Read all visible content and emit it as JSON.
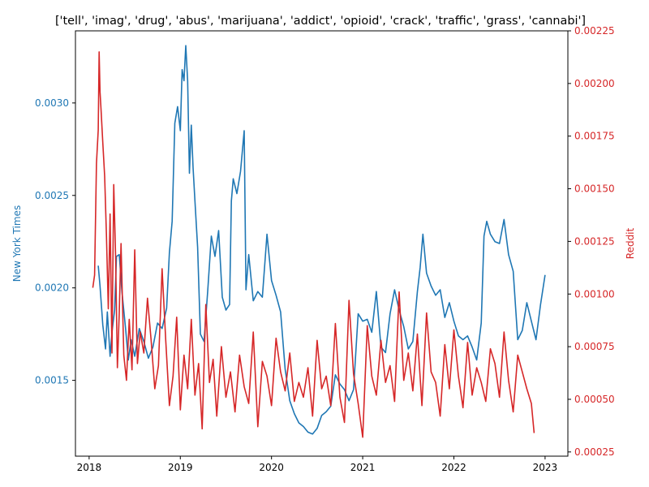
{
  "chart_data": {
    "type": "line",
    "title": "['tell', 'imag', 'drug', 'abus', 'marijuana', 'addict', 'opioid', 'crack', 'traffic', 'grass', 'cannabi']",
    "xlabel": "",
    "xlim": [
      2017.85,
      2023.25
    ],
    "x_ticks": [
      "2018",
      "2019",
      "2020",
      "2021",
      "2022",
      "2023"
    ],
    "left_axis": {
      "label": "New York Times",
      "color": "#1f77b4",
      "ylim": [
        0.00109,
        0.00339
      ],
      "ticks": [
        "0.0015",
        "0.0020",
        "0.0025",
        "0.0030"
      ]
    },
    "right_axis": {
      "label": "Reddit",
      "color": "#d62728",
      "ylim": [
        0.00023,
        0.00225
      ],
      "ticks": [
        "0.00025",
        "0.00050",
        "0.00075",
        "0.00100",
        "0.00125",
        "0.00150",
        "0.00175",
        "0.00200",
        "0.00225"
      ]
    },
    "grid": false,
    "series": [
      {
        "name": "New York Times",
        "axis": "left",
        "color": "#1f77b4",
        "x": [
          2018.1,
          2018.12,
          2018.15,
          2018.18,
          2018.2,
          2018.23,
          2018.25,
          2018.28,
          2018.3,
          2018.33,
          2018.36,
          2018.4,
          2018.43,
          2018.46,
          2018.5,
          2018.55,
          2018.6,
          2018.65,
          2018.7,
          2018.75,
          2018.8,
          2018.85,
          2018.88,
          2018.91,
          2018.94,
          2018.97,
          2019.0,
          2019.02,
          2019.04,
          2019.06,
          2019.08,
          2019.1,
          2019.12,
          2019.14,
          2019.16,
          2019.19,
          2019.22,
          2019.26,
          2019.3,
          2019.34,
          2019.38,
          2019.42,
          2019.46,
          2019.5,
          2019.54,
          2019.56,
          2019.58,
          2019.62,
          2019.66,
          2019.7,
          2019.72,
          2019.75,
          2019.8,
          2019.85,
          2019.9,
          2019.95,
          2020.0,
          2020.05,
          2020.1,
          2020.15,
          2020.2,
          2020.25,
          2020.3,
          2020.35,
          2020.4,
          2020.45,
          2020.5,
          2020.55,
          2020.6,
          2020.65,
          2020.7,
          2020.75,
          2020.8,
          2020.85,
          2020.9,
          2020.95,
          2021.0,
          2021.05,
          2021.1,
          2021.15,
          2021.2,
          2021.25,
          2021.3,
          2021.35,
          2021.4,
          2021.45,
          2021.5,
          2021.55,
          2021.6,
          2021.63,
          2021.66,
          2021.7,
          2021.75,
          2021.8,
          2021.85,
          2021.9,
          2021.95,
          2022.0,
          2022.05,
          2022.1,
          2022.15,
          2022.2,
          2022.25,
          2022.3,
          2022.33,
          2022.36,
          2022.4,
          2022.45,
          2022.5,
          2022.55,
          2022.6,
          2022.65,
          2022.7,
          2022.75,
          2022.8,
          2022.85,
          2022.9,
          2022.95,
          2023.0
        ],
        "y": [
          0.00212,
          0.00201,
          0.0018,
          0.00167,
          0.00187,
          0.00163,
          0.00176,
          0.00188,
          0.00217,
          0.00218,
          0.00198,
          0.00178,
          0.00161,
          0.00172,
          0.00163,
          0.00178,
          0.00171,
          0.00162,
          0.00168,
          0.00181,
          0.00178,
          0.00189,
          0.00219,
          0.00236,
          0.00289,
          0.00298,
          0.00285,
          0.00318,
          0.00312,
          0.00331,
          0.00312,
          0.00262,
          0.00288,
          0.00265,
          0.00247,
          0.00222,
          0.00175,
          0.00171,
          0.00198,
          0.00228,
          0.00217,
          0.00231,
          0.00195,
          0.00188,
          0.00191,
          0.00247,
          0.00259,
          0.00251,
          0.00263,
          0.00285,
          0.00199,
          0.00218,
          0.00193,
          0.00198,
          0.00195,
          0.00229,
          0.00204,
          0.00196,
          0.00187,
          0.00156,
          0.00139,
          0.00132,
          0.00127,
          0.00125,
          0.00122,
          0.00121,
          0.00124,
          0.00131,
          0.00133,
          0.00136,
          0.00153,
          0.00148,
          0.00145,
          0.00139,
          0.00145,
          0.00186,
          0.00182,
          0.00183,
          0.00176,
          0.00198,
          0.00168,
          0.00165,
          0.00186,
          0.00199,
          0.00188,
          0.00179,
          0.00167,
          0.00171,
          0.00198,
          0.00211,
          0.00229,
          0.00208,
          0.00201,
          0.00196,
          0.00199,
          0.00184,
          0.00192,
          0.00182,
          0.00174,
          0.00172,
          0.00174,
          0.00168,
          0.00161,
          0.00181,
          0.00228,
          0.00236,
          0.00229,
          0.00225,
          0.00224,
          0.00237,
          0.00218,
          0.00209,
          0.00172,
          0.00177,
          0.00192,
          0.00182,
          0.00172,
          0.00191,
          0.00207
        ]
      },
      {
        "name": "Reddit",
        "axis": "right",
        "color": "#d62728",
        "x": [
          2018.04,
          2018.06,
          2018.08,
          2018.1,
          2018.11,
          2018.12,
          2018.13,
          2018.15,
          2018.17,
          2018.19,
          2018.21,
          2018.23,
          2018.25,
          2018.27,
          2018.29,
          2018.31,
          2018.33,
          2018.35,
          2018.38,
          2018.41,
          2018.44,
          2018.47,
          2018.5,
          2018.53,
          2018.56,
          2018.6,
          2018.64,
          2018.68,
          2018.72,
          2018.76,
          2018.8,
          2018.84,
          2018.88,
          2018.92,
          2018.96,
          2019.0,
          2019.04,
          2019.08,
          2019.12,
          2019.16,
          2019.2,
          2019.24,
          2019.28,
          2019.32,
          2019.36,
          2019.4,
          2019.45,
          2019.5,
          2019.55,
          2019.6,
          2019.65,
          2019.7,
          2019.75,
          2019.8,
          2019.85,
          2019.9,
          2019.95,
          2020.0,
          2020.05,
          2020.1,
          2020.15,
          2020.2,
          2020.25,
          2020.3,
          2020.35,
          2020.4,
          2020.45,
          2020.5,
          2020.55,
          2020.6,
          2020.65,
          2020.7,
          2020.75,
          2020.8,
          2020.85,
          2020.9,
          2020.95,
          2021.0,
          2021.05,
          2021.1,
          2021.15,
          2021.2,
          2021.25,
          2021.3,
          2021.35,
          2021.4,
          2021.45,
          2021.5,
          2021.55,
          2021.6,
          2021.65,
          2021.7,
          2021.75,
          2021.8,
          2021.85,
          2021.9,
          2021.95,
          2022.0,
          2022.05,
          2022.1,
          2022.15,
          2022.2,
          2022.25,
          2022.3,
          2022.35,
          2022.4,
          2022.45,
          2022.5,
          2022.55,
          2022.6,
          2022.65,
          2022.7,
          2022.75,
          2022.8,
          2022.85,
          2022.88
        ],
        "y": [
          0.00103,
          0.00109,
          0.00162,
          0.00178,
          0.00215,
          0.00196,
          0.00188,
          0.00172,
          0.00156,
          0.00128,
          0.00093,
          0.00138,
          0.00072,
          0.00152,
          0.00118,
          0.00065,
          0.00091,
          0.00124,
          0.00071,
          0.00059,
          0.00088,
          0.00064,
          0.00121,
          0.00067,
          0.00082,
          0.00072,
          0.00098,
          0.00078,
          0.00055,
          0.00066,
          0.00112,
          0.00078,
          0.00047,
          0.00061,
          0.00089,
          0.00045,
          0.00071,
          0.00055,
          0.00088,
          0.00052,
          0.00067,
          0.00036,
          0.00095,
          0.00058,
          0.00069,
          0.00042,
          0.00075,
          0.00051,
          0.00063,
          0.00044,
          0.00071,
          0.00056,
          0.00048,
          0.00082,
          0.00037,
          0.00068,
          0.00061,
          0.00047,
          0.00079,
          0.00063,
          0.00054,
          0.00072,
          0.00049,
          0.00058,
          0.00051,
          0.00065,
          0.00042,
          0.00078,
          0.00055,
          0.00061,
          0.00047,
          0.00086,
          0.00051,
          0.00039,
          0.00097,
          0.00062,
          0.00048,
          0.00032,
          0.00085,
          0.00061,
          0.00052,
          0.00078,
          0.00058,
          0.00066,
          0.00049,
          0.00101,
          0.00059,
          0.00072,
          0.00054,
          0.00081,
          0.00047,
          0.00091,
          0.00063,
          0.00058,
          0.00042,
          0.00076,
          0.00055,
          0.00083,
          0.00061,
          0.00046,
          0.00077,
          0.00052,
          0.00065,
          0.00058,
          0.00049,
          0.00074,
          0.00067,
          0.00051,
          0.00082,
          0.00059,
          0.00044,
          0.00071,
          0.00063,
          0.00055,
          0.00048,
          0.00034
        ]
      }
    ]
  }
}
